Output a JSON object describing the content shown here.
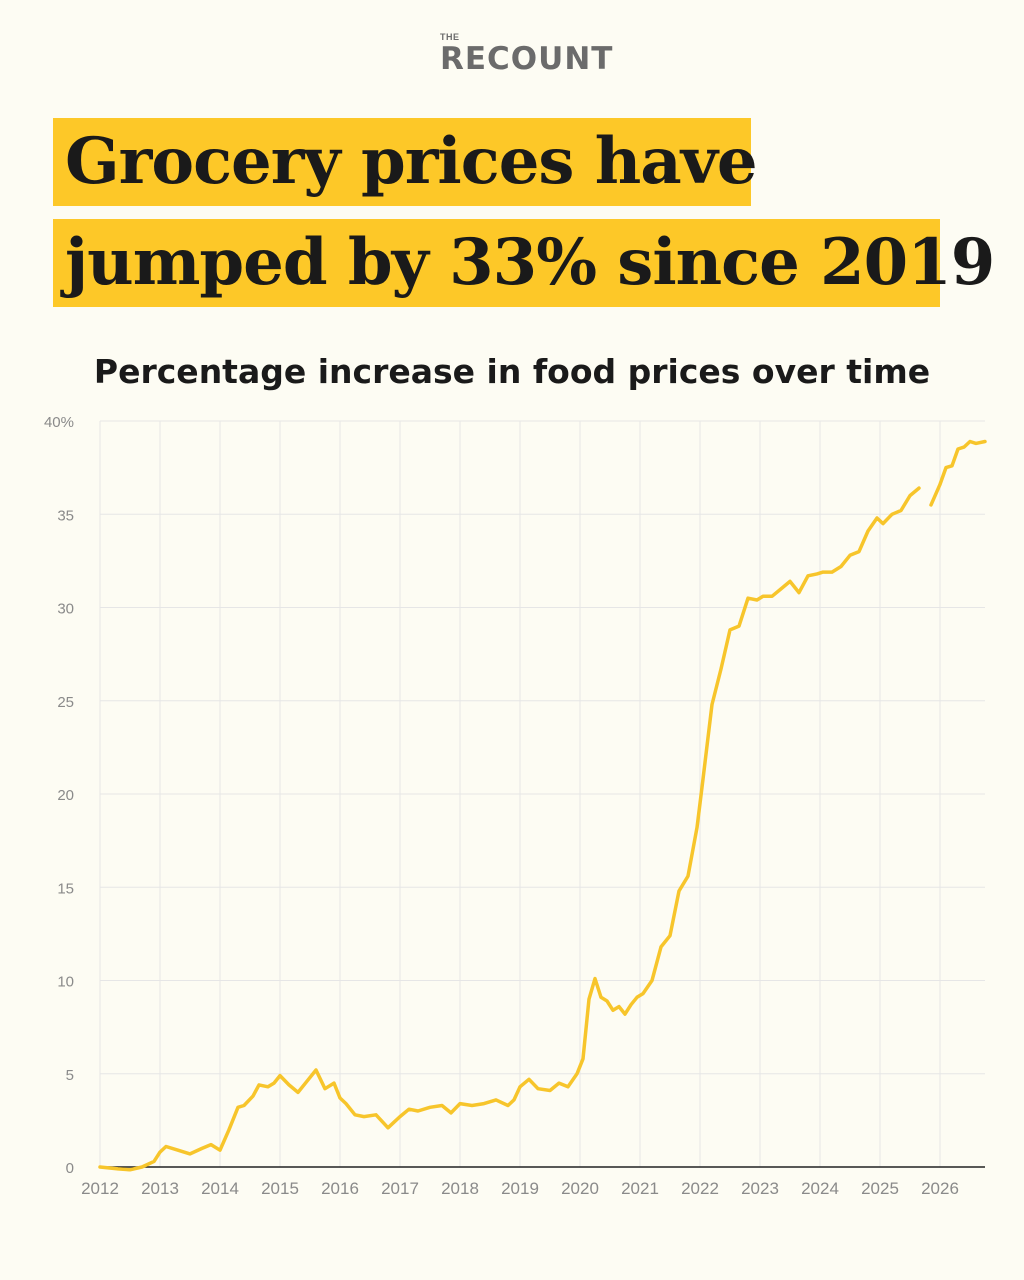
{
  "brand": {
    "small": "THE",
    "main": "RECOUNT"
  },
  "headline": {
    "line1": "Grocery prices have",
    "line2": "jumped by 33% since 2019"
  },
  "colors": {
    "highlight": "#fdc828",
    "line": "#f7c52b",
    "grid": "#e6e6e6",
    "axis": "#222222",
    "tick_text": "#8a8a8a"
  },
  "chart_data": {
    "type": "line",
    "title": "Percentage increase in food prices over time",
    "xlabel": "",
    "ylabel": "",
    "xlim": [
      2012,
      2026.75
    ],
    "ylim": [
      0,
      40
    ],
    "y_ticks": [
      0,
      5,
      10,
      15,
      20,
      25,
      30,
      35,
      40
    ],
    "y_tick_labels": [
      "0",
      "5",
      "10",
      "15",
      "20",
      "25",
      "30",
      "35",
      "40%"
    ],
    "x_ticks": [
      2012,
      2013,
      2014,
      2015,
      2016,
      2017,
      2018,
      2019,
      2020,
      2021,
      2022,
      2023,
      2024,
      2025,
      2026
    ],
    "x_tick_labels": [
      "2012",
      "2013",
      "2014",
      "2015",
      "2016",
      "2017",
      "2018",
      "2019",
      "2020",
      "2021",
      "2022",
      "2023",
      "2024",
      "2025",
      "2026"
    ],
    "grid": true,
    "series": [
      {
        "x": [
          2012.0,
          2012.3,
          2012.5,
          2012.7,
          2012.9,
          2013.0,
          2013.1,
          2013.3,
          2013.5,
          2013.7,
          2013.85,
          2014.0,
          2014.15,
          2014.3,
          2014.4,
          2014.55,
          2014.65,
          2014.8,
          2014.9,
          2015.0,
          2015.15,
          2015.3,
          2015.45,
          2015.6,
          2015.75,
          2015.9,
          2016.0,
          2016.1,
          2016.25,
          2016.4,
          2016.6,
          2016.8,
          2016.9,
          2017.0,
          2017.15,
          2017.3,
          2017.5,
          2017.7,
          2017.85,
          2018.0,
          2018.2,
          2018.4,
          2018.6,
          2018.8,
          2018.9,
          2019.0,
          2019.15,
          2019.3,
          2019.5,
          2019.65,
          2019.8,
          2019.95,
          2020.05,
          2020.15,
          2020.25,
          2020.35,
          2020.45,
          2020.55,
          2020.65,
          2020.75,
          2020.85,
          2020.95,
          2021.05,
          2021.2,
          2021.35,
          2021.5,
          2021.65,
          2021.8,
          2021.95,
          2022.05,
          2022.2,
          2022.35,
          2022.5,
          2022.65,
          2022.8,
          2022.95,
          2023.05,
          2023.2,
          2023.35,
          2023.5,
          2023.65,
          2023.8,
          2023.95,
          2024.05,
          2024.2,
          2024.35,
          2024.5,
          2024.65,
          2024.8,
          2024.95,
          2025.05,
          2025.2,
          2025.35,
          2025.5,
          2025.65
        ],
        "y": [
          0.0,
          -0.1,
          -0.15,
          0.0,
          0.3,
          0.8,
          1.1,
          0.9,
          0.7,
          1.0,
          1.2,
          0.9,
          2.0,
          3.2,
          3.3,
          3.8,
          4.4,
          4.3,
          4.5,
          4.9,
          4.4,
          4.0,
          4.6,
          5.2,
          4.2,
          4.5,
          3.7,
          3.4,
          2.8,
          2.7,
          2.8,
          2.1,
          2.4,
          2.7,
          3.1,
          3.0,
          3.2,
          3.3,
          2.9,
          3.4,
          3.3,
          3.4,
          3.6,
          3.3,
          3.6,
          4.3,
          4.7,
          4.2,
          4.1,
          4.5,
          4.3,
          5.0,
          5.8,
          9.0,
          10.1,
          9.1,
          8.9,
          8.4,
          8.6,
          8.2,
          8.7,
          9.1,
          9.3,
          10.0,
          11.8,
          12.4,
          14.8,
          15.6,
          18.2,
          20.8,
          24.8,
          26.7,
          28.8,
          29.0,
          30.5,
          30.4,
          30.6,
          30.6,
          31.0,
          31.4,
          30.8,
          31.7,
          31.8,
          31.9,
          31.9,
          32.2,
          32.8,
          33.0,
          34.1,
          34.8,
          34.5,
          35.0,
          35.2,
          36.0,
          36.4
        ]
      },
      {
        "x": [
          2025.85,
          2026.0,
          2026.1,
          2026.2,
          2026.3,
          2026.4,
          2026.5,
          2026.6,
          2026.75
        ],
        "y": [
          35.5,
          36.6,
          37.5,
          37.6,
          38.5,
          38.6,
          38.9,
          38.8,
          38.9
        ]
      }
    ]
  }
}
